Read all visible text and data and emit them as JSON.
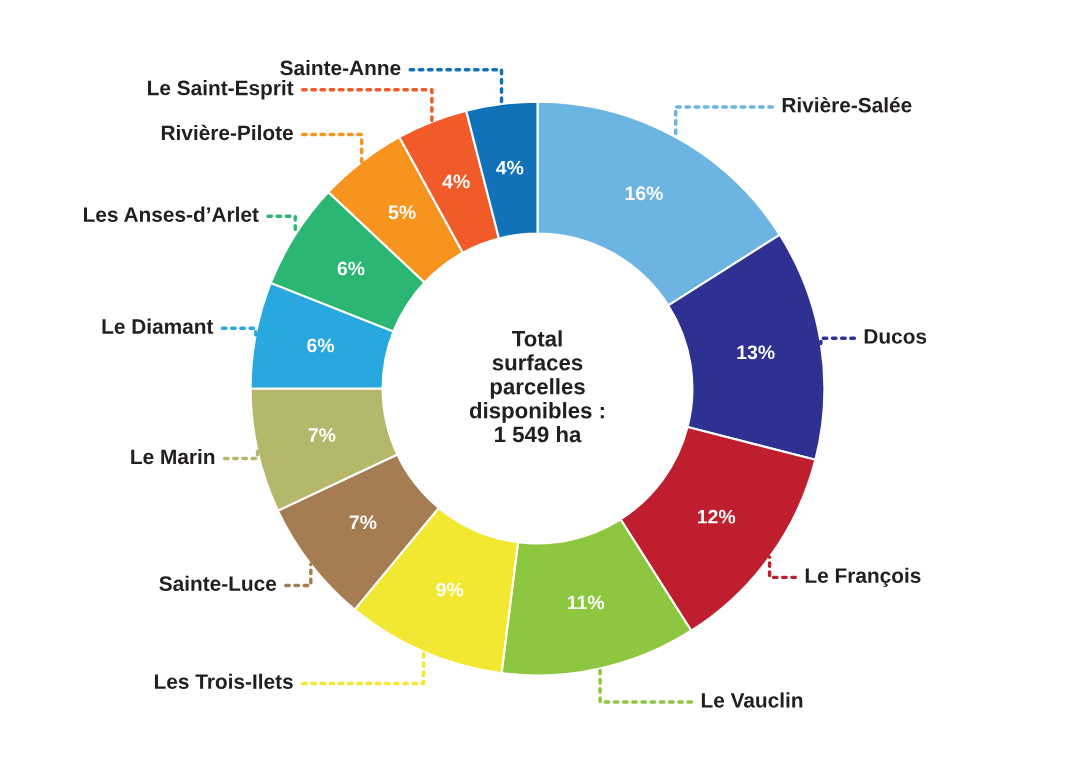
{
  "chart_data": {
    "type": "donut",
    "categories": [
      "Rivière-Salée",
      "Ducos",
      "Le François",
      "Le Vauclin",
      "Les Trois-Ilets",
      "Sainte-Luce",
      "Le Marin",
      "Le Diamant",
      "Les Anses-d’Arlet",
      "Rivière-Pilote",
      "Le Saint-Esprit",
      "Sainte-Anne"
    ],
    "values": [
      16,
      13,
      12,
      11,
      9,
      7,
      7,
      6,
      6,
      5,
      4,
      4
    ],
    "value_labels": [
      "16%",
      "13%",
      "12%",
      "11%",
      "9%",
      "7%",
      "7%",
      "6%",
      "6%",
      "5%",
      "4%",
      "4%"
    ],
    "colors": [
      "#6cb4e2",
      "#2e3192",
      "#be1e2d",
      "#8dc63f",
      "#f2e832",
      "#a67c52",
      "#b5b86a",
      "#29a8e0",
      "#2bb673",
      "#f7941d",
      "#f15a29",
      "#1172ba"
    ],
    "annotations": [
      "Total\nsurfaces\nparcelles\ndisponibles :\n1 549 ha"
    ],
    "legend": false
  }
}
